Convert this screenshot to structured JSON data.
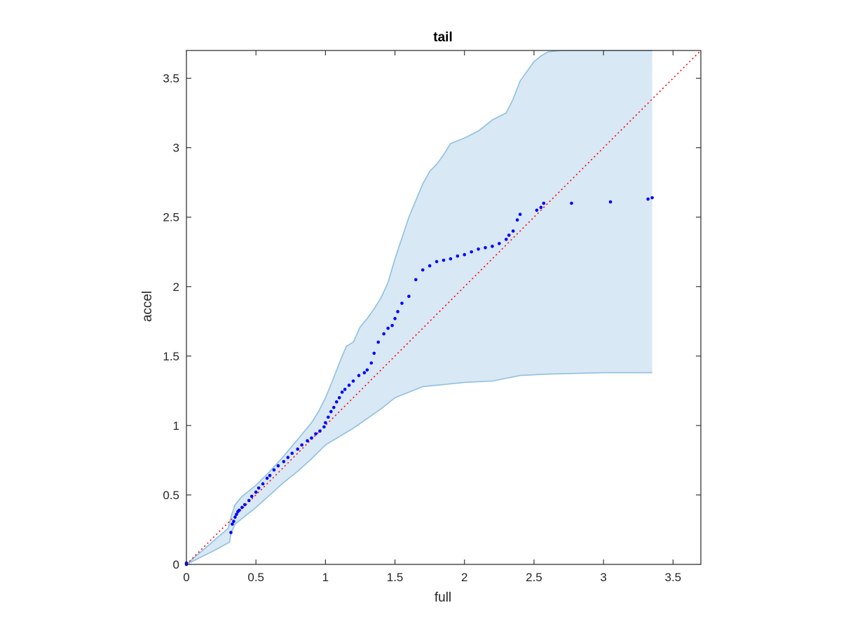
{
  "chart_data": {
    "type": "scatter",
    "title": "tail",
    "xlabel": "full",
    "ylabel": "accel",
    "xlim": [
      0,
      3.7
    ],
    "ylim": [
      0,
      3.7
    ],
    "grid": false,
    "xticks": [
      0,
      0.5,
      1,
      1.5,
      2,
      2.5,
      3,
      3.5
    ],
    "yticks": [
      0,
      0.5,
      1,
      1.5,
      2,
      2.5,
      3,
      3.5
    ],
    "xtick_labels": [
      "0",
      "0.5",
      "1",
      "1.5",
      "2",
      "2.5",
      "3",
      "3.5"
    ],
    "ytick_labels": [
      "0",
      "0.5",
      "1",
      "1.5",
      "2",
      "2.5",
      "3",
      "3.5"
    ],
    "colors": {
      "points": "#0000ff",
      "band_fill": "#d8e8f4",
      "band_edge": "#8fc0e0",
      "reference_line": "#ff0000",
      "axes": "#262626"
    },
    "reference_line": {
      "x": [
        0,
        3.7
      ],
      "y": [
        0,
        3.7
      ]
    },
    "confidence_band": {
      "upper": [
        [
          0,
          0
        ],
        [
          0.3,
          0.26
        ],
        [
          0.32,
          0.34
        ],
        [
          0.35,
          0.43
        ],
        [
          0.4,
          0.49
        ],
        [
          0.5,
          0.57
        ],
        [
          0.6,
          0.67
        ],
        [
          0.7,
          0.78
        ],
        [
          0.8,
          0.9
        ],
        [
          0.9,
          1.02
        ],
        [
          0.95,
          1.1
        ],
        [
          1.0,
          1.2
        ],
        [
          1.05,
          1.32
        ],
        [
          1.1,
          1.45
        ],
        [
          1.15,
          1.57
        ],
        [
          1.2,
          1.6
        ],
        [
          1.25,
          1.71
        ],
        [
          1.3,
          1.77
        ],
        [
          1.35,
          1.84
        ],
        [
          1.4,
          1.92
        ],
        [
          1.45,
          2.03
        ],
        [
          1.5,
          2.2
        ],
        [
          1.55,
          2.35
        ],
        [
          1.6,
          2.5
        ],
        [
          1.65,
          2.62
        ],
        [
          1.7,
          2.74
        ],
        [
          1.75,
          2.83
        ],
        [
          1.8,
          2.88
        ],
        [
          1.85,
          2.95
        ],
        [
          1.9,
          3.03
        ],
        [
          2.0,
          3.07
        ],
        [
          2.1,
          3.12
        ],
        [
          2.2,
          3.2
        ],
        [
          2.3,
          3.25
        ],
        [
          2.35,
          3.35
        ],
        [
          2.4,
          3.48
        ],
        [
          2.45,
          3.55
        ],
        [
          2.5,
          3.62
        ],
        [
          2.55,
          3.66
        ],
        [
          2.6,
          3.69
        ],
        [
          2.7,
          3.7
        ],
        [
          3.0,
          3.7
        ],
        [
          3.35,
          3.7
        ]
      ],
      "lower": [
        [
          0,
          0
        ],
        [
          0.2,
          0.1
        ],
        [
          0.31,
          0.16
        ],
        [
          0.32,
          0.22
        ],
        [
          0.35,
          0.29
        ],
        [
          0.4,
          0.33
        ],
        [
          0.5,
          0.41
        ],
        [
          0.6,
          0.5
        ],
        [
          0.7,
          0.59
        ],
        [
          0.8,
          0.67
        ],
        [
          0.9,
          0.76
        ],
        [
          1.0,
          0.86
        ],
        [
          1.1,
          0.92
        ],
        [
          1.2,
          0.98
        ],
        [
          1.3,
          1.05
        ],
        [
          1.4,
          1.12
        ],
        [
          1.5,
          1.2
        ],
        [
          1.6,
          1.24
        ],
        [
          1.7,
          1.28
        ],
        [
          1.8,
          1.29
        ],
        [
          1.9,
          1.3
        ],
        [
          2.0,
          1.31
        ],
        [
          2.2,
          1.32
        ],
        [
          2.4,
          1.36
        ],
        [
          2.6,
          1.37
        ],
        [
          3.0,
          1.38
        ],
        [
          3.35,
          1.38
        ]
      ]
    },
    "series": [
      {
        "x": [
          0.0,
          0.0,
          0.32,
          0.33,
          0.34,
          0.35,
          0.36,
          0.37,
          0.38,
          0.4,
          0.42,
          0.45,
          0.47,
          0.5,
          0.52,
          0.55,
          0.58,
          0.6,
          0.63,
          0.66,
          0.7,
          0.73,
          0.76,
          0.8,
          0.83,
          0.87,
          0.9,
          0.93,
          0.96,
          0.99,
          1.0,
          1.02,
          1.04,
          1.06,
          1.08,
          1.1,
          1.12,
          1.14,
          1.17,
          1.2,
          1.24,
          1.28,
          1.3,
          1.33,
          1.35,
          1.38,
          1.42,
          1.45,
          1.48,
          1.5,
          1.52,
          1.55,
          1.6,
          1.65,
          1.7,
          1.75,
          1.8,
          1.85,
          1.9,
          1.95,
          2.0,
          2.05,
          2.1,
          2.15,
          2.2,
          2.25,
          2.3,
          2.32,
          2.35,
          2.38,
          2.4,
          2.52,
          2.55,
          2.57,
          2.77,
          3.05,
          3.32,
          3.35
        ],
        "y": [
          0.0,
          0.01,
          0.23,
          0.29,
          0.31,
          0.34,
          0.36,
          0.38,
          0.39,
          0.41,
          0.43,
          0.46,
          0.49,
          0.52,
          0.55,
          0.58,
          0.62,
          0.64,
          0.68,
          0.71,
          0.74,
          0.77,
          0.8,
          0.83,
          0.86,
          0.89,
          0.91,
          0.94,
          0.96,
          0.99,
          1.02,
          1.06,
          1.1,
          1.13,
          1.17,
          1.2,
          1.24,
          1.26,
          1.29,
          1.32,
          1.36,
          1.38,
          1.4,
          1.45,
          1.52,
          1.6,
          1.66,
          1.7,
          1.72,
          1.77,
          1.82,
          1.88,
          1.93,
          2.05,
          2.12,
          2.15,
          2.18,
          2.19,
          2.2,
          2.22,
          2.23,
          2.25,
          2.27,
          2.28,
          2.29,
          2.31,
          2.34,
          2.37,
          2.4,
          2.48,
          2.52,
          2.55,
          2.57,
          2.6,
          2.6,
          2.61,
          2.63,
          2.64
        ]
      }
    ]
  }
}
